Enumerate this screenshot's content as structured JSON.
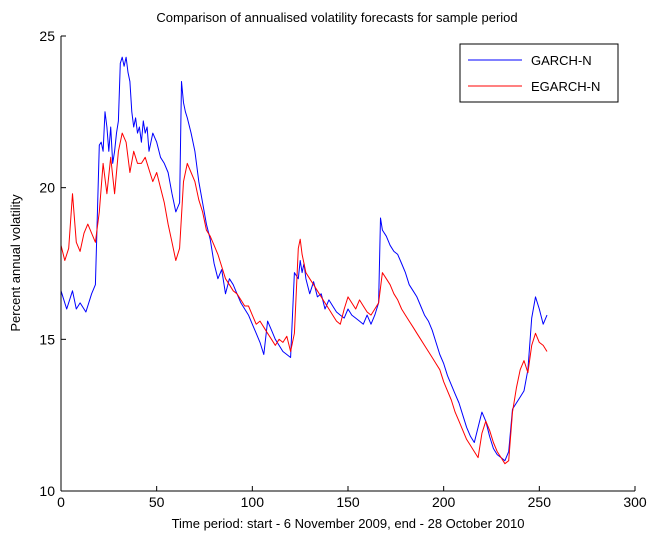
{
  "chart_data": {
    "type": "line",
    "title": "Comparison of annualised volatility forecasts for sample period",
    "xlabel": "Time period: start - 6 November 2009, end - 28 October 2010",
    "ylabel": "Percent annual volatility",
    "xlim": [
      0,
      300
    ],
    "ylim": [
      10,
      25
    ],
    "xticks": [
      0,
      50,
      100,
      150,
      200,
      250,
      300
    ],
    "yticks": [
      10,
      15,
      20,
      25
    ],
    "grid": false,
    "legend_position": "top-right",
    "colors": {
      "GARCH-N": "#0000ff",
      "EGARCH-N": "#ff0000"
    },
    "series": [
      {
        "name": "GARCH-N",
        "x": [
          0,
          3,
          6,
          8,
          10,
          13,
          16,
          18,
          20,
          21,
          22,
          23,
          24,
          25,
          26,
          27,
          28,
          29,
          30,
          31,
          32,
          33,
          34,
          35,
          36,
          37,
          38,
          39,
          40,
          41,
          42,
          43,
          44,
          45,
          46,
          48,
          50,
          52,
          54,
          56,
          58,
          60,
          62,
          63,
          64,
          65,
          66,
          68,
          70,
          72,
          74,
          76,
          78,
          80,
          82,
          84,
          86,
          88,
          90,
          92,
          94,
          96,
          98,
          100,
          102,
          104,
          106,
          108,
          110,
          112,
          114,
          116,
          118,
          120,
          122,
          124,
          125,
          126,
          127,
          128,
          130,
          132,
          134,
          136,
          138,
          140,
          142,
          144,
          146,
          148,
          150,
          152,
          154,
          156,
          158,
          160,
          162,
          164,
          166,
          167,
          168,
          170,
          172,
          174,
          176,
          178,
          180,
          182,
          184,
          186,
          188,
          190,
          192,
          194,
          196,
          198,
          200,
          202,
          204,
          206,
          208,
          210,
          212,
          214,
          216,
          218,
          220,
          222,
          224,
          226,
          228,
          230,
          232,
          234,
          236,
          238,
          240,
          242,
          244,
          246,
          248,
          250,
          252,
          254
        ],
        "values": [
          16.6,
          16.0,
          16.6,
          16.0,
          16.2,
          15.9,
          16.5,
          16.8,
          21.4,
          21.5,
          21.2,
          22.5,
          22.0,
          21.2,
          22.0,
          20.8,
          21.2,
          21.8,
          22.2,
          24.1,
          24.3,
          24.0,
          24.3,
          23.8,
          23.5,
          22.5,
          22.0,
          22.3,
          21.8,
          22.0,
          21.5,
          22.2,
          21.8,
          22.0,
          21.2,
          21.8,
          21.5,
          21.0,
          20.8,
          20.5,
          19.8,
          19.2,
          19.5,
          23.5,
          22.8,
          22.5,
          22.3,
          21.8,
          21.2,
          20.2,
          19.5,
          18.8,
          18.3,
          17.5,
          17.0,
          17.3,
          16.5,
          17.0,
          16.8,
          16.5,
          16.2,
          16.0,
          15.8,
          15.5,
          15.2,
          14.9,
          14.5,
          15.6,
          15.3,
          15.0,
          14.8,
          14.6,
          14.5,
          14.4,
          17.2,
          17.0,
          17.6,
          17.2,
          17.5,
          17.0,
          16.5,
          16.9,
          16.4,
          16.5,
          16.0,
          16.3,
          16.1,
          15.9,
          15.8,
          15.7,
          16.0,
          15.8,
          15.7,
          15.6,
          15.5,
          15.8,
          15.5,
          15.8,
          16.2,
          19.0,
          18.6,
          18.4,
          18.1,
          17.9,
          17.8,
          17.5,
          17.2,
          16.8,
          16.6,
          16.4,
          16.1,
          15.8,
          15.6,
          15.3,
          14.9,
          14.5,
          14.2,
          13.8,
          13.5,
          13.2,
          12.9,
          12.5,
          12.1,
          11.8,
          11.6,
          12.1,
          12.6,
          12.3,
          11.8,
          11.4,
          11.2,
          11.1,
          11.0,
          11.3,
          12.7,
          12.9,
          13.1,
          13.3,
          14.0,
          15.7,
          16.4,
          16.0,
          15.5,
          15.8
        ]
      },
      {
        "name": "EGARCH-N",
        "x": [
          0,
          2,
          4,
          6,
          8,
          10,
          12,
          14,
          16,
          18,
          20,
          22,
          24,
          26,
          28,
          30,
          32,
          34,
          36,
          38,
          40,
          42,
          44,
          46,
          48,
          50,
          52,
          54,
          56,
          58,
          60,
          62,
          64,
          66,
          68,
          70,
          72,
          74,
          76,
          78,
          80,
          82,
          84,
          86,
          88,
          90,
          92,
          94,
          96,
          98,
          100,
          102,
          104,
          106,
          108,
          110,
          112,
          114,
          116,
          118,
          120,
          122,
          124,
          125,
          126,
          127,
          128,
          130,
          132,
          134,
          136,
          138,
          140,
          142,
          144,
          146,
          148,
          150,
          152,
          154,
          156,
          158,
          160,
          162,
          164,
          166,
          168,
          170,
          172,
          174,
          176,
          178,
          180,
          182,
          184,
          186,
          188,
          190,
          192,
          194,
          196,
          198,
          200,
          202,
          204,
          206,
          208,
          210,
          212,
          214,
          216,
          218,
          220,
          222,
          224,
          226,
          228,
          230,
          232,
          234,
          236,
          238,
          240,
          242,
          244,
          246,
          248,
          250,
          252,
          254
        ],
        "values": [
          18.1,
          17.6,
          18.0,
          19.8,
          18.2,
          17.9,
          18.5,
          18.8,
          18.5,
          18.2,
          19.2,
          20.8,
          19.8,
          21.0,
          19.8,
          21.2,
          21.8,
          21.5,
          20.5,
          21.2,
          20.8,
          20.8,
          21.0,
          20.6,
          20.2,
          20.5,
          20.0,
          19.5,
          18.8,
          18.2,
          17.6,
          18.0,
          20.2,
          20.8,
          20.5,
          20.2,
          19.6,
          19.2,
          18.6,
          18.4,
          18.1,
          17.8,
          17.4,
          17.0,
          16.8,
          16.6,
          16.5,
          16.3,
          16.1,
          16.1,
          15.8,
          15.5,
          15.6,
          15.4,
          15.2,
          15.0,
          14.8,
          15.0,
          14.9,
          15.1,
          14.6,
          15.2,
          18.0,
          18.3,
          17.8,
          17.5,
          17.2,
          17.0,
          16.8,
          16.6,
          16.4,
          16.2,
          16.0,
          15.8,
          15.6,
          15.5,
          16.0,
          16.4,
          16.2,
          16.0,
          16.3,
          16.1,
          15.9,
          15.8,
          16.0,
          16.2,
          17.2,
          17.0,
          16.8,
          16.5,
          16.3,
          16.0,
          15.8,
          15.6,
          15.4,
          15.2,
          15.0,
          14.8,
          14.6,
          14.4,
          14.2,
          14.0,
          13.6,
          13.3,
          13.0,
          12.6,
          12.3,
          12.0,
          11.7,
          11.5,
          11.3,
          11.1,
          11.9,
          12.3,
          12.0,
          11.6,
          11.3,
          11.1,
          10.9,
          11.0,
          12.6,
          13.4,
          14.0,
          14.3,
          13.9,
          14.8,
          15.2,
          14.9,
          14.8,
          14.6
        ]
      }
    ]
  }
}
